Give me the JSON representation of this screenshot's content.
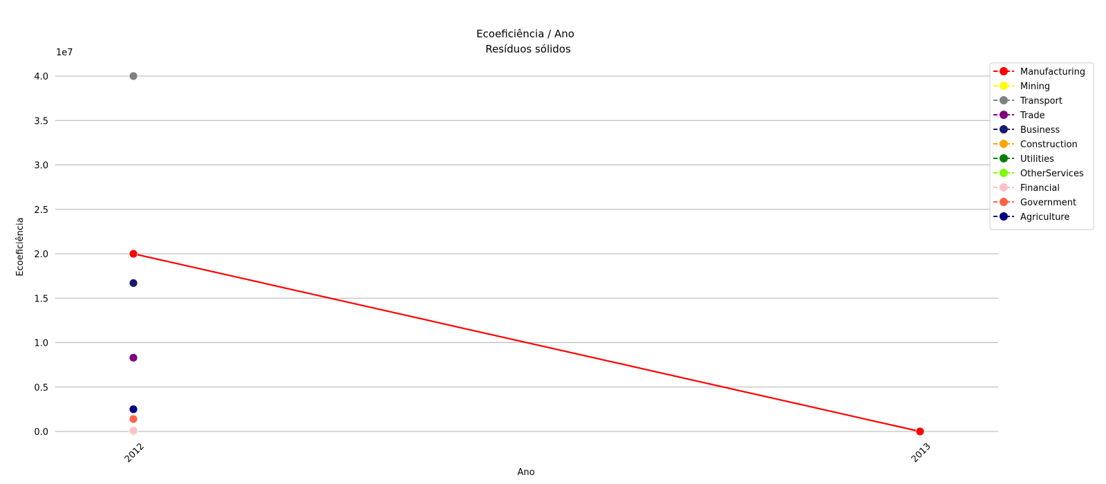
{
  "chart_data": {
    "type": "line",
    "title": "Ecoeficiência / Ano",
    "subtitle": "Resíduos sólidos",
    "xlabel": "Ano",
    "ylabel": "Ecoeficiência",
    "y_scale_label": "1e7",
    "categories": [
      "2012",
      "2013"
    ],
    "y_ticks": [
      "0.0",
      "0.5",
      "1.0",
      "1.5",
      "2.0",
      "2.5",
      "3.0",
      "3.5",
      "4.0"
    ],
    "ylim": [
      0,
      40000000
    ],
    "grid": "horizontal",
    "legend_position": "top-right",
    "series": [
      {
        "name": "Manufacturing",
        "color": "#ff0000",
        "values": [
          20000000,
          0
        ]
      },
      {
        "name": "Mining",
        "color": "#ffff00",
        "values": [
          0,
          null
        ]
      },
      {
        "name": "Transport",
        "color": "#808080",
        "values": [
          40000000,
          null
        ]
      },
      {
        "name": "Trade",
        "color": "#800080",
        "values": [
          8300000,
          null
        ]
      },
      {
        "name": "Business",
        "color": "#191970",
        "values": [
          16700000,
          null
        ]
      },
      {
        "name": "Construction",
        "color": "#ffa500",
        "values": [
          0,
          null
        ]
      },
      {
        "name": "Utilities",
        "color": "#008000",
        "values": [
          0,
          null
        ]
      },
      {
        "name": "OtherServices",
        "color": "#7cfc00",
        "values": [
          0,
          null
        ]
      },
      {
        "name": "Financial",
        "color": "#ffc0cb",
        "values": [
          100000,
          null
        ]
      },
      {
        "name": "Government",
        "color": "#ff6347",
        "values": [
          1400000,
          null
        ]
      },
      {
        "name": "Agriculture",
        "color": "#000080",
        "values": [
          2500000,
          null
        ]
      }
    ]
  }
}
